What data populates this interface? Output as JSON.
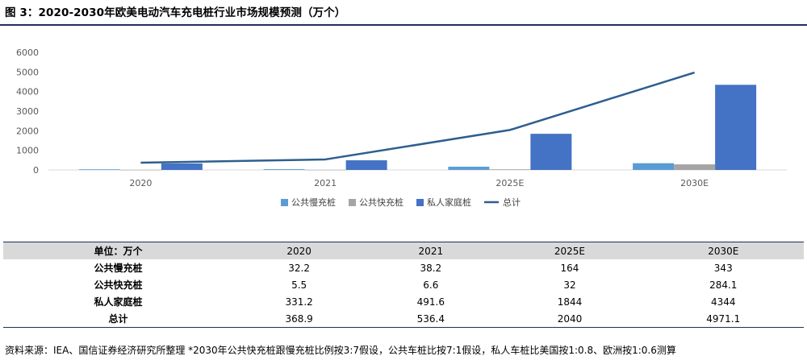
{
  "title": "图 3：2020-2030年欧美电动汽车充电桩行业市场规模预测（万个）",
  "chart_data": {
    "type": "bar",
    "categories": [
      "2020",
      "2021",
      "2025E",
      "2030E"
    ],
    "series": [
      {
        "name": "公共慢充桩",
        "kind": "bar",
        "color": "#5b9bd5",
        "values": [
          32.2,
          38.2,
          164,
          343
        ]
      },
      {
        "name": "公共快充桩",
        "kind": "bar",
        "color": "#a5a5a5",
        "values": [
          5.5,
          6.6,
          32,
          284.1
        ]
      },
      {
        "name": "私人家庭桩",
        "kind": "bar",
        "color": "#4472c4",
        "values": [
          331.2,
          491.6,
          1844,
          4344
        ]
      },
      {
        "name": "总计",
        "kind": "line",
        "color": "#2e5e8e",
        "values": [
          368.9,
          536.4,
          2040,
          4971.1
        ]
      }
    ],
    "yticks": [
      "0",
      "1000",
      "2000",
      "3000",
      "4000",
      "5000",
      "6000"
    ],
    "ylim": [
      0,
      6000
    ],
    "grid": false,
    "legend": "bottom"
  },
  "table": {
    "header": [
      "单位：万个",
      "2020",
      "2021",
      "2025E",
      "2030E"
    ],
    "rows": [
      [
        "公共慢充桩",
        "32.2",
        "38.2",
        "164",
        "343"
      ],
      [
        "公共快充桩",
        "5.5",
        "6.6",
        "32",
        "284.1"
      ],
      [
        "私人家庭桩",
        "331.2",
        "491.6",
        "1844",
        "4344"
      ],
      [
        "总计",
        "368.9",
        "536.4",
        "2040",
        "4971.1"
      ]
    ]
  },
  "source": "资料来源：IEA、国信证券经济研究所整理 *2030年公共快充桩跟慢充桩比例按3:7假设，公共车桩比按7:1假设，私人车桩比美国按1:0.8、欧洲按1:0.6测算"
}
